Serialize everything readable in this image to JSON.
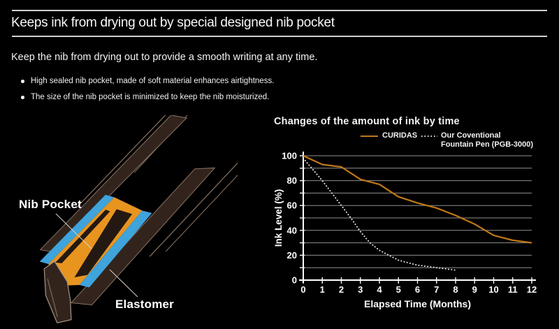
{
  "header": {
    "title": "Keeps ink from drying out by special designed nib pocket",
    "subtitle": "Keep the nib from drying out to provide a smooth writing at any time."
  },
  "bullets": [
    "High sealed nib pocket, made of soft material enhances airtightness.",
    "The size of the nib pocket is minimized to keep the nib moisturized."
  ],
  "diagram": {
    "labels": {
      "nib_pocket": "Nib Pocket",
      "elastomer": "Elastomer"
    },
    "colors": {
      "pocket_orange": "#E8951F",
      "elastomer_blue": "#3FA3DC",
      "pen_body": "#32241D",
      "pen_edge": "#8A7361"
    }
  },
  "chart_data": {
    "type": "line",
    "title": "Changes of the amount of ink by time",
    "xlabel": "Elapsed Time (Months)",
    "ylabel": "Ink Level (%)",
    "xlim": [
      0,
      12
    ],
    "ylim": [
      0,
      100
    ],
    "x_ticks": [
      0,
      1,
      2,
      3,
      4,
      5,
      6,
      7,
      8,
      9,
      10,
      11,
      12
    ],
    "y_tick_labels": [
      0,
      20,
      40,
      60,
      80,
      100
    ],
    "gridline_step": 10,
    "grid": true,
    "legend_position": "top",
    "series": [
      {
        "name": "CURIDAS",
        "style": "solid",
        "color": "#C07818",
        "x": [
          0,
          1,
          2,
          3,
          4,
          5,
          6,
          7,
          8,
          9,
          10,
          11,
          12
        ],
        "values": [
          100,
          93,
          91,
          81,
          77,
          67,
          62,
          58,
          52,
          45,
          36,
          32,
          30
        ]
      },
      {
        "name": "Our Coventional Fountain Pen (PGB-3000)",
        "style": "dotted",
        "color": "#E6E6E6",
        "x": [
          0,
          0.5,
          1,
          1.5,
          2,
          2.5,
          3,
          3.5,
          4,
          4.5,
          5,
          5.5,
          6,
          6.5,
          7,
          7.5,
          8
        ],
        "values": [
          98,
          89,
          80,
          70,
          60,
          50,
          39,
          30,
          24,
          20,
          16,
          14,
          12,
          11,
          10,
          9,
          8
        ]
      }
    ],
    "legend": {
      "curidas": "CURIDAS",
      "conventional_line1": "Our Coventional",
      "conventional_line2": "Fountain Pen (PGB-3000)"
    }
  },
  "colors": {
    "background": "#000000",
    "text": "#F2F2F2",
    "rule": "#D0D0D0",
    "grid": "#8F8F8F",
    "axis": "#FFFFFF"
  }
}
